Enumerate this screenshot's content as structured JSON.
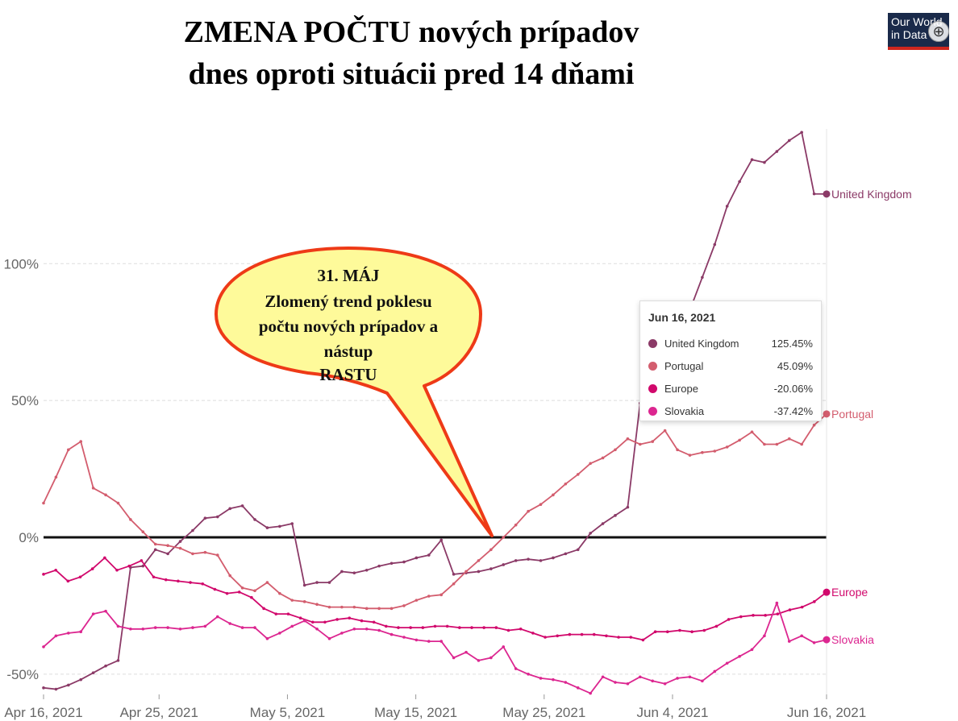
{
  "title_line1": "ZMENA POČTU nových prípadov",
  "title_line2": "dnes oproti situácii pred 14 dňami",
  "logo_line1": "Our World",
  "logo_line2": "in Data",
  "zoom_icon": "⊕",
  "callout": {
    "line1": "31. MÁJ",
    "line2": "Zlomený trend poklesu",
    "line3": "počtu nových prípadov a",
    "line4": "nástup",
    "line5": "RASTU"
  },
  "tooltip": {
    "date": "Jun 16, 2021",
    "rows": [
      {
        "name": "United Kingdom",
        "value": "125.45%",
        "color": "#8b3a67"
      },
      {
        "name": "Portugal",
        "value": "45.09%",
        "color": "#d35d6e"
      },
      {
        "name": "Europe",
        "value": "-20.06%",
        "color": "#d1086c"
      },
      {
        "name": "Slovakia",
        "value": "-37.42%",
        "color": "#dc2690"
      }
    ]
  },
  "chart_data": {
    "type": "line",
    "title": "ZMENA POČTU nových prípadov dnes oproti situácii pred 14 dňami",
    "x_start": "2021-04-16",
    "x_end": "2021-06-16",
    "x_tick_labels": [
      "Apr 16, 2021",
      "Apr 25, 2021",
      "May 5, 2021",
      "May 15, 2021",
      "May 25, 2021",
      "Jun 4, 2021",
      "Jun 16, 2021"
    ],
    "y_ticks": [
      -50,
      0,
      50,
      100
    ],
    "y_tick_labels": [
      "-50%",
      "0%",
      "50%",
      "100%"
    ],
    "ylim": [
      -57,
      148
    ],
    "grid": "horizontal dashed",
    "zero_line": true,
    "series": [
      {
        "name": "United Kingdom",
        "color": "#8b3a67",
        "values": [
          -55,
          -55.5,
          -54,
          -52,
          -49.5,
          -47,
          -45,
          -11,
          -10.5,
          -4.5,
          -6,
          -1.5,
          2.5,
          7,
          7.5,
          10.5,
          11.5,
          6.5,
          3.5,
          4,
          5,
          -17.5,
          -16.5,
          -16.5,
          -12.5,
          -13,
          -12,
          -10.5,
          -9.5,
          -9,
          -7.5,
          -6.5,
          -1,
          -13.5,
          -13,
          -12.5,
          -11.5,
          -10,
          -8.5,
          -8,
          -8.5,
          -7.5,
          -6,
          -4.5,
          1.5,
          5,
          8,
          11,
          49,
          55,
          63,
          71,
          83,
          95,
          107,
          121,
          130,
          138,
          137,
          141,
          145,
          148,
          125.5,
          125.45
        ]
      },
      {
        "name": "Portugal",
        "color": "#d35d6e",
        "values": [
          12.5,
          22,
          32,
          35,
          18,
          15.5,
          12.5,
          6.5,
          2,
          -2.5,
          -3,
          -4,
          -6,
          -5.5,
          -6.5,
          -14,
          -18.5,
          -19.5,
          -16.5,
          -20.5,
          -23,
          -23.5,
          -24.5,
          -25.5,
          -25.5,
          -25.5,
          -26,
          -26,
          -26,
          -25,
          -23,
          -21.5,
          -21,
          -17,
          -12.5,
          -8.5,
          -4.5,
          0,
          4.5,
          9.5,
          12,
          15.5,
          19.5,
          23,
          27,
          29,
          32,
          36,
          34,
          35,
          39,
          32,
          30,
          31,
          31.5,
          33,
          35.5,
          38.5,
          34,
          34,
          36,
          34,
          41,
          45.09
        ]
      },
      {
        "name": "Europe",
        "color": "#d1086c",
        "values": [
          -13.5,
          -12,
          -16,
          -14.5,
          -11.5,
          -7.5,
          -12,
          -10.5,
          -8.5,
          -14.5,
          -15.5,
          -16,
          -16.5,
          -17,
          -19,
          -20.5,
          -20,
          -22,
          -26,
          -28,
          -28,
          -29.5,
          -31,
          -31,
          -30,
          -29.5,
          -30.5,
          -31,
          -32.5,
          -33,
          -33,
          -33,
          -32.5,
          -32.5,
          -33,
          -33,
          -33,
          -33,
          -34,
          -33.5,
          -35,
          -36.5,
          -36,
          -35.5,
          -35.5,
          -35.5,
          -36,
          -36.5,
          -36.5,
          -37.5,
          -34.5,
          -34.5,
          -34,
          -34.5,
          -34,
          -32.5,
          -30,
          -29,
          -28.5,
          -28.5,
          -28,
          -26.5,
          -25.5,
          -23.5,
          -20.06
        ]
      },
      {
        "name": "Slovakia",
        "color": "#dc2690",
        "values": [
          -40,
          -36,
          -35,
          -34.5,
          -28,
          -27,
          -32.5,
          -33.5,
          -33.5,
          -33,
          -33,
          -33.5,
          -33,
          -32.5,
          -29,
          -31.5,
          -33,
          -33,
          -37,
          -35,
          -32.5,
          -30.5,
          -33.5,
          -37,
          -35,
          -33.5,
          -33.5,
          -34,
          -35.5,
          -36.5,
          -37.5,
          -38,
          -38,
          -44,
          -42,
          -45,
          -44,
          -40,
          -48,
          -50,
          -51.5,
          -52,
          -53,
          -55,
          -57,
          -51,
          -53,
          -53.5,
          -51,
          -52.5,
          -53.5,
          -51.5,
          -51,
          -52.5,
          -49,
          -46,
          -43.5,
          -41,
          -36,
          -24,
          -38,
          -36,
          -38.5,
          -37.42
        ]
      }
    ]
  }
}
